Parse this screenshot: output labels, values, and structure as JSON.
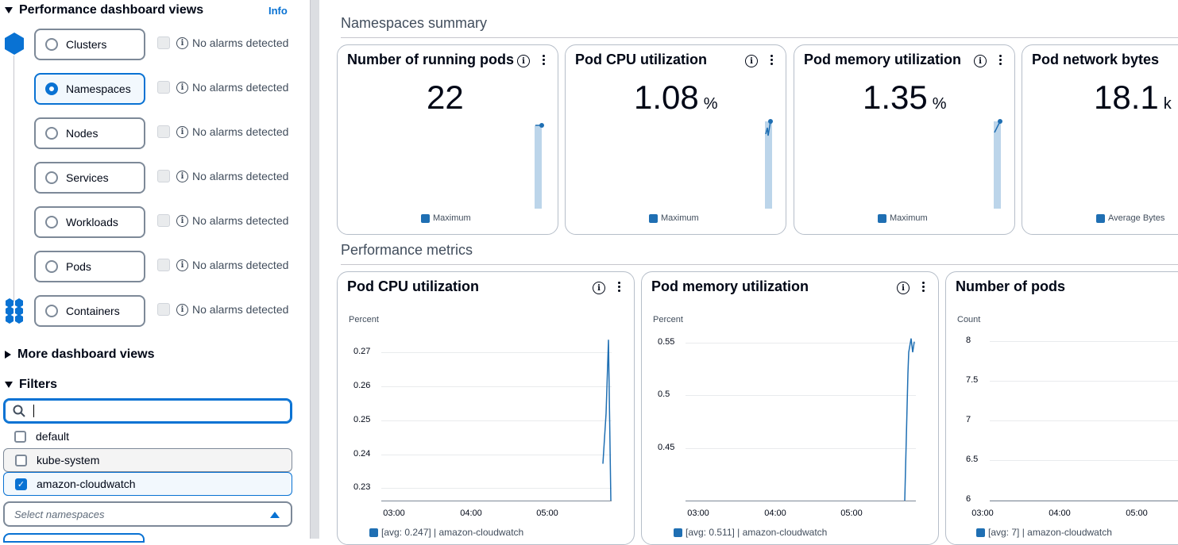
{
  "sidebar": {
    "perf_header": "Performance dashboard views",
    "info_label": "Info",
    "views": [
      {
        "label": "Clusters",
        "alarm": "No alarms detected",
        "selected": false
      },
      {
        "label": "Namespaces",
        "alarm": "No alarms detected",
        "selected": true
      },
      {
        "label": "Nodes",
        "alarm": "No alarms detected",
        "selected": false
      },
      {
        "label": "Services",
        "alarm": "No alarms detected",
        "selected": false
      },
      {
        "label": "Workloads",
        "alarm": "No alarms detected",
        "selected": false
      },
      {
        "label": "Pods",
        "alarm": "No alarms detected",
        "selected": false
      },
      {
        "label": "Containers",
        "alarm": "No alarms detected",
        "selected": false
      }
    ],
    "more_header": "More dashboard views",
    "filters_header": "Filters",
    "search_value": "",
    "options": [
      {
        "label": "default",
        "checked": false
      },
      {
        "label": "kube-system",
        "checked": false
      },
      {
        "label": "amazon-cloudwatch",
        "checked": true
      }
    ],
    "select_placeholder": "Select namespaces"
  },
  "main": {
    "summary_title": "Namespaces summary",
    "metrics_title": "Performance metrics",
    "summary_cards": [
      {
        "title": "Number of running pods",
        "value": "22",
        "unit": "",
        "legend": "Maximum"
      },
      {
        "title": "Pod CPU utilization",
        "value": "1.08",
        "unit": "%",
        "legend": "Maximum"
      },
      {
        "title": "Pod memory utilization",
        "value": "1.35",
        "unit": "%",
        "legend": "Maximum"
      },
      {
        "title": "Pod network bytes",
        "value": "18.1",
        "unit": "k",
        "legend": "Average Bytes"
      }
    ]
  },
  "chart_data": [
    {
      "type": "line",
      "title": "Pod CPU utilization",
      "ylabel": "Percent",
      "yticks": [
        "0.27",
        "0.26",
        "0.25",
        "0.24",
        "0.23"
      ],
      "xticks": [
        "03:00",
        "04:00",
        "05:00"
      ],
      "ylim": [
        0.226,
        0.275
      ],
      "series": [
        {
          "name": "[avg: 0.247] | amazon-cloudwatch",
          "x": [
            "05:43",
            "05:44",
            "05:44",
            "05:45"
          ],
          "values": [
            0.237,
            0.252,
            0.274,
            0.226
          ]
        }
      ]
    },
    {
      "type": "line",
      "title": "Pod memory utilization",
      "ylabel": "Percent",
      "yticks": [
        "0.55",
        "0.5",
        "0.45"
      ],
      "xticks": [
        "03:00",
        "04:00",
        "05:00"
      ],
      "ylim": [
        0.4,
        0.555
      ],
      "series": [
        {
          "name": "[avg: 0.511] | amazon-cloudwatch",
          "x": [
            "05:40",
            "05:41",
            "05:42",
            "05:43",
            "05:44",
            "05:45"
          ],
          "values": [
            0.4,
            0.52,
            0.54,
            0.553,
            0.54,
            0.55
          ]
        }
      ]
    },
    {
      "type": "line",
      "title": "Number of pods",
      "ylabel": "Count",
      "yticks": [
        "8",
        "7.5",
        "7",
        "6.5",
        "6"
      ],
      "xticks": [
        "03:00",
        "04:00",
        "05:00"
      ],
      "ylim": [
        6,
        8
      ],
      "series": [
        {
          "name": "[avg: 7] | amazon-cloudwatch",
          "values": []
        }
      ]
    }
  ]
}
